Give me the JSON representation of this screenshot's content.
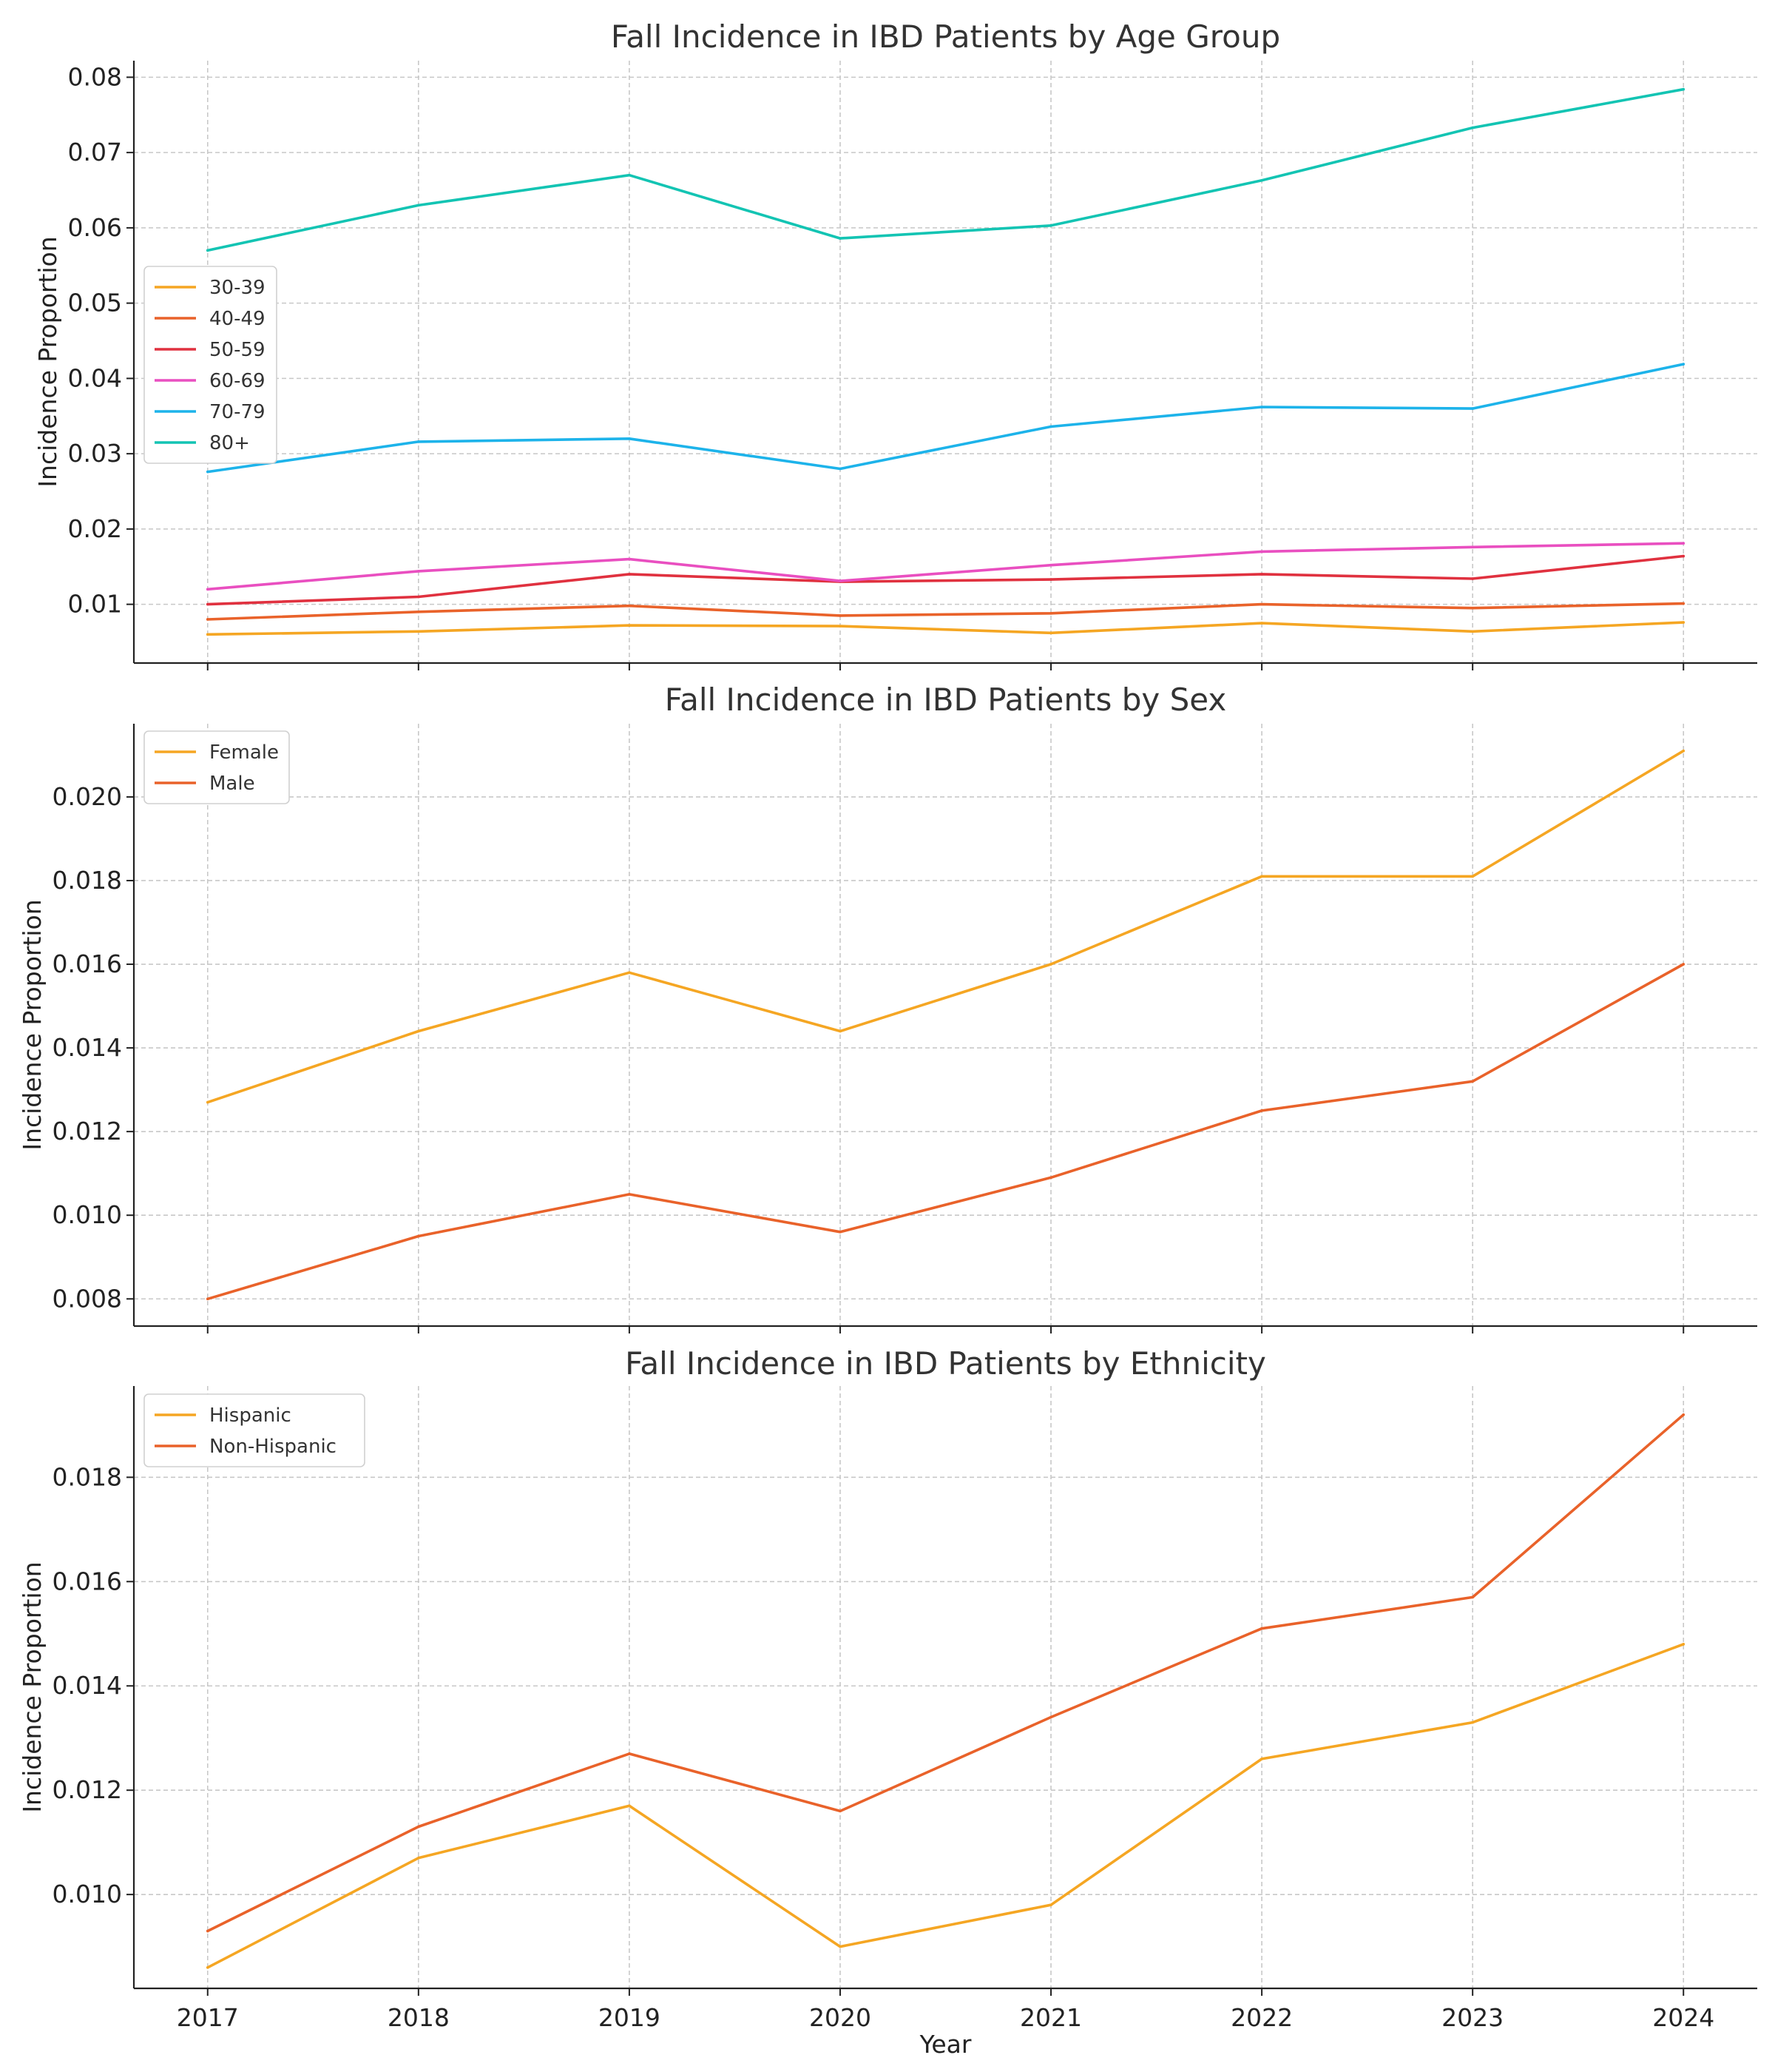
{
  "chart_data": [
    {
      "type": "line",
      "title": "Fall Incidence in IBD Patients by Age Group",
      "xlabel": "",
      "ylabel": "Incidence Proportion",
      "x": [
        2017,
        2018,
        2019,
        2020,
        2021,
        2022,
        2023,
        2024
      ],
      "xlim": [
        2016.65,
        2024.35
      ],
      "ylim": [
        0.0022,
        0.0822
      ],
      "yticks": [
        "0.01",
        "0.02",
        "0.03",
        "0.04",
        "0.05",
        "0.06",
        "0.07",
        "0.08"
      ],
      "ytick_values": [
        0.01,
        0.02,
        0.03,
        0.04,
        0.05,
        0.06,
        0.07,
        0.08
      ],
      "show_xtick_labels": false,
      "grid": true,
      "legend": "center-left",
      "series": [
        {
          "name": "30-39",
          "color": "#f5a623",
          "values": [
            0.006,
            0.0064,
            0.0072,
            0.0071,
            0.0062,
            0.0075,
            0.0064,
            0.0076
          ]
        },
        {
          "name": "40-49",
          "color": "#e9622a",
          "values": [
            0.008,
            0.009,
            0.0098,
            0.0085,
            0.0088,
            0.01,
            0.0095,
            0.0101
          ]
        },
        {
          "name": "50-59",
          "color": "#e0313f",
          "values": [
            0.01,
            0.011,
            0.014,
            0.013,
            0.0133,
            0.014,
            0.0134,
            0.0164
          ]
        },
        {
          "name": "60-69",
          "color": "#e94fc0",
          "values": [
            0.012,
            0.0144,
            0.016,
            0.0131,
            0.0152,
            0.017,
            0.0176,
            0.0181
          ]
        },
        {
          "name": "70-79",
          "color": "#1db3ea",
          "values": [
            0.0276,
            0.0316,
            0.032,
            0.028,
            0.0336,
            0.0362,
            0.036,
            0.0419
          ]
        },
        {
          "name": "80+",
          "color": "#13c4b3",
          "values": [
            0.057,
            0.063,
            0.067,
            0.0586,
            0.0603,
            0.0663,
            0.0733,
            0.0784
          ]
        }
      ]
    },
    {
      "type": "line",
      "title": "Fall Incidence in IBD Patients by Sex",
      "xlabel": "",
      "ylabel": "Incidence Proportion",
      "x": [
        2017,
        2018,
        2019,
        2020,
        2021,
        2022,
        2023,
        2024
      ],
      "xlim": [
        2016.65,
        2024.35
      ],
      "ylim": [
        0.00735,
        0.02175
      ],
      "yticks": [
        "0.008",
        "0.010",
        "0.012",
        "0.014",
        "0.016",
        "0.018",
        "0.020"
      ],
      "ytick_values": [
        0.008,
        0.01,
        0.012,
        0.014,
        0.016,
        0.018,
        0.02
      ],
      "show_xtick_labels": false,
      "grid": true,
      "legend": "upper-left",
      "series": [
        {
          "name": "Female",
          "color": "#f5a623",
          "values": [
            0.0127,
            0.0144,
            0.0158,
            0.0144,
            0.016,
            0.0181,
            0.0181,
            0.0211
          ]
        },
        {
          "name": "Male",
          "color": "#e9622a",
          "values": [
            0.008,
            0.0095,
            0.0105,
            0.0096,
            0.0109,
            0.0125,
            0.0132,
            0.016
          ]
        }
      ]
    },
    {
      "type": "line",
      "title": "Fall Incidence in IBD Patients by Ethnicity",
      "xlabel": "Year",
      "ylabel": "Incidence Proportion",
      "x": [
        2017,
        2018,
        2019,
        2020,
        2021,
        2022,
        2023,
        2024
      ],
      "xlim": [
        2016.65,
        2024.35
      ],
      "ylim": [
        0.0082,
        0.01975
      ],
      "yticks": [
        "0.010",
        "0.012",
        "0.014",
        "0.016",
        "0.018"
      ],
      "ytick_values": [
        0.01,
        0.012,
        0.014,
        0.016,
        0.018
      ],
      "xticks": [
        "2017",
        "2018",
        "2019",
        "2020",
        "2021",
        "2022",
        "2023",
        "2024"
      ],
      "show_xtick_labels": true,
      "grid": true,
      "legend": "upper-left",
      "series": [
        {
          "name": "Hispanic",
          "color": "#f5a623",
          "values": [
            0.0086,
            0.0107,
            0.0117,
            0.009,
            0.0098,
            0.0126,
            0.0133,
            0.0148
          ]
        },
        {
          "name": "Non-Hispanic",
          "color": "#e9622a",
          "values": [
            0.0093,
            0.0113,
            0.0127,
            0.0116,
            0.0134,
            0.0151,
            0.0157,
            0.0192
          ]
        }
      ]
    }
  ]
}
